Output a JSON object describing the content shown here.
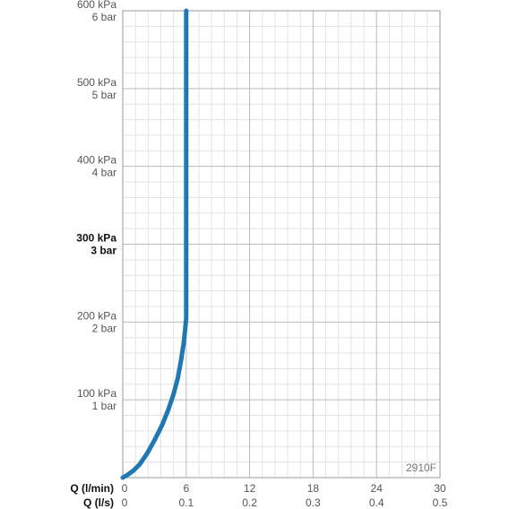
{
  "chart_data": {
    "type": "line",
    "code": "2910F",
    "x_axis_rows": [
      {
        "label": "Q (l/min)",
        "ticks": [
          "0",
          "6",
          "12",
          "18",
          "24",
          "30"
        ]
      },
      {
        "label": "Q (l/s)",
        "ticks": [
          "0",
          "0.1",
          "0.2",
          "0.3",
          "0.4",
          "0.5"
        ]
      }
    ],
    "xlim": [
      0,
      30
    ],
    "ylim": [
      0,
      600
    ],
    "y_ticks": [
      {
        "value": 100,
        "kpa": "100 kPa",
        "bar": "1 bar",
        "bold": false
      },
      {
        "value": 200,
        "kpa": "200 kPa",
        "bar": "2 bar",
        "bold": false
      },
      {
        "value": 300,
        "kpa": "300 kPa",
        "bar": "3 bar",
        "bold": true
      },
      {
        "value": 400,
        "kpa": "400 kPa",
        "bar": "4 bar",
        "bold": false
      },
      {
        "value": 500,
        "kpa": "500 kPa",
        "bar": "5 bar",
        "bold": false
      },
      {
        "value": 600,
        "kpa": "600 kPa",
        "bar": "6 bar",
        "bold": false
      }
    ],
    "grid": true,
    "series": [
      {
        "color": "#1f78b4",
        "x": [
          0,
          0.5,
          1.0,
          1.6,
          2.3,
          3.0,
          3.7,
          4.3,
          4.8,
          5.2,
          5.5,
          5.75,
          5.9,
          6.0,
          6.0,
          6.0
        ],
        "y": [
          0,
          4,
          9,
          17,
          31,
          48,
          67,
          87,
          107,
          128,
          150,
          172,
          190,
          205,
          300,
          600
        ]
      }
    ]
  },
  "colors": {
    "curve": "#1f78b4",
    "grid_major": "#bbbbbb",
    "grid_minor": "#e3e3e3",
    "frame": "#999999"
  }
}
